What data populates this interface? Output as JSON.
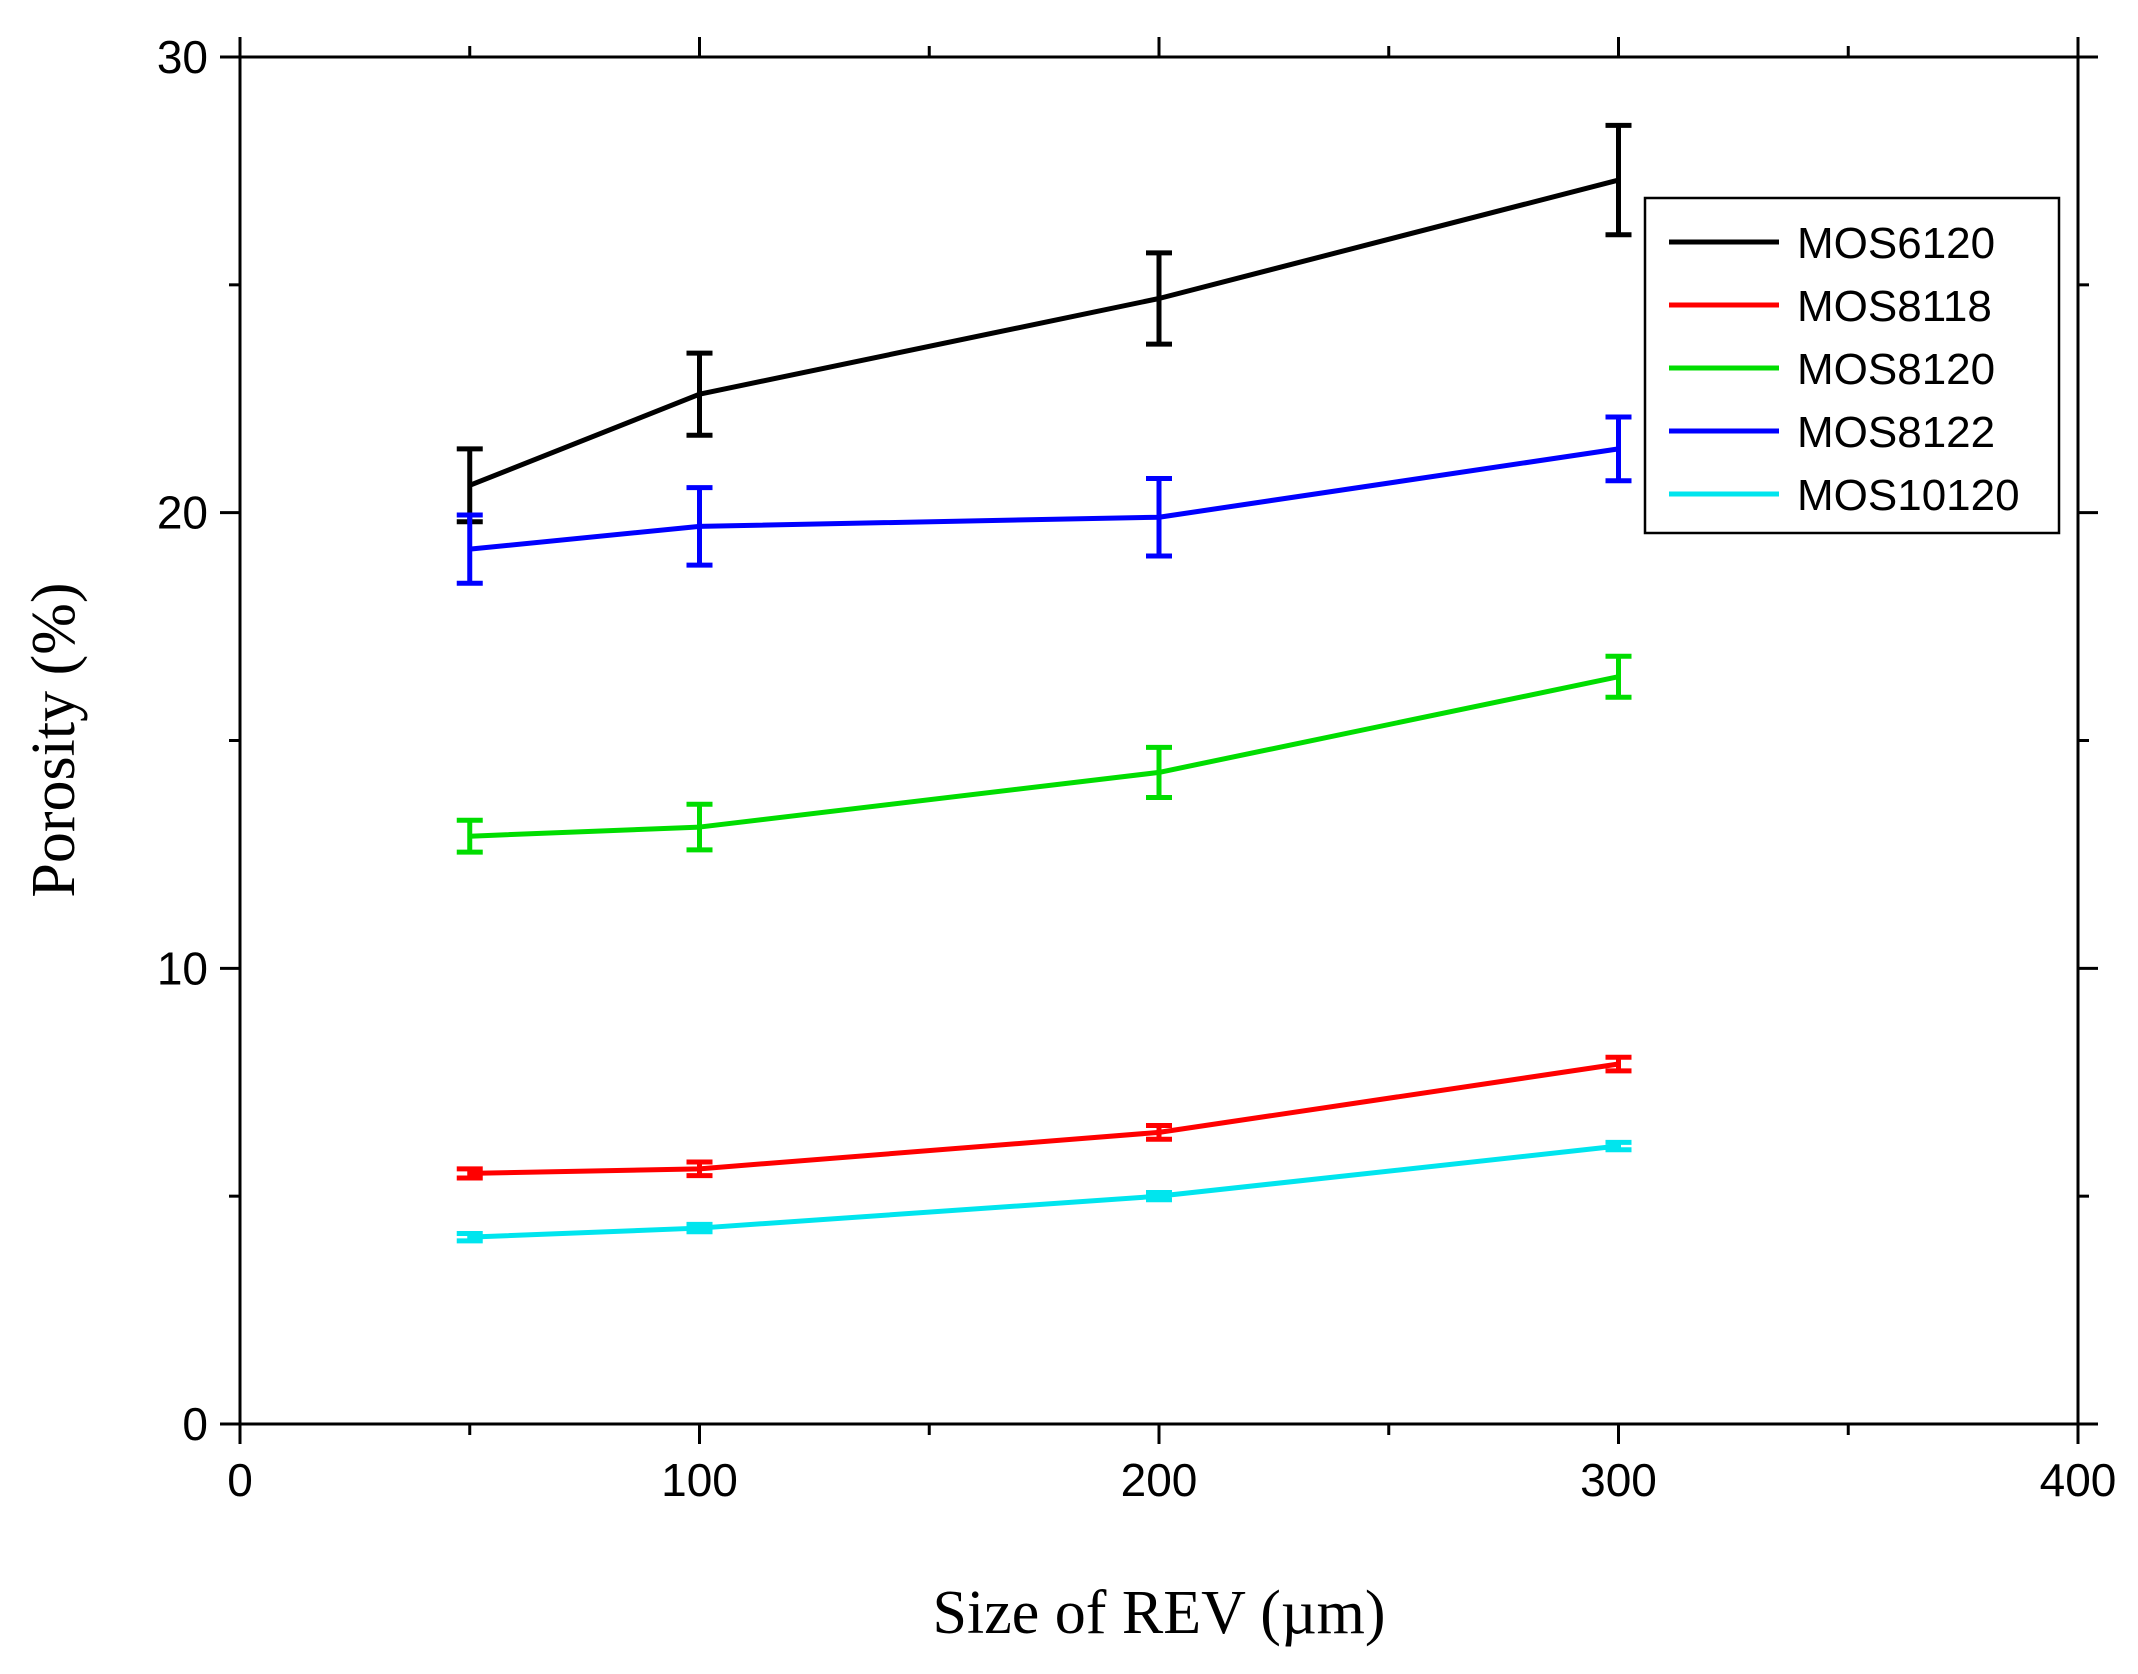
{
  "chart_data": {
    "type": "line",
    "title": "",
    "xlabel": "Size of REV (µm)",
    "ylabel": "Porosity (%)",
    "xlim": [
      0,
      400
    ],
    "ylim": [
      0,
      30
    ],
    "xticks": [
      0,
      100,
      200,
      300,
      400
    ],
    "yticks": [
      0,
      10,
      20,
      30
    ],
    "x_minor_step": 50,
    "y_minor_step": 5,
    "grid": false,
    "legend_position": "top-right",
    "x": [
      50,
      100,
      200,
      300
    ],
    "series": [
      {
        "name": "MOS6120",
        "color": "#000000",
        "values": [
          20.6,
          22.6,
          24.7,
          27.3
        ],
        "errors": [
          0.8,
          0.9,
          1.0,
          1.2
        ]
      },
      {
        "name": "MOS8118",
        "color": "#ff0000",
        "values": [
          5.5,
          5.6,
          6.4,
          7.9
        ],
        "errors": [
          0.1,
          0.15,
          0.15,
          0.15
        ]
      },
      {
        "name": "MOS8120",
        "color": "#00dd00",
        "values": [
          12.9,
          13.1,
          14.3,
          16.4
        ],
        "errors": [
          0.35,
          0.5,
          0.55,
          0.45
        ]
      },
      {
        "name": "MOS8122",
        "color": "#0000ff",
        "values": [
          19.2,
          19.7,
          19.9,
          21.4
        ],
        "errors": [
          0.75,
          0.85,
          0.85,
          0.7
        ]
      },
      {
        "name": "MOS10120",
        "color": "#00e5ee",
        "values": [
          4.1,
          4.3,
          5.0,
          6.1
        ],
        "errors": [
          0.08,
          0.08,
          0.08,
          0.08
        ]
      }
    ]
  }
}
